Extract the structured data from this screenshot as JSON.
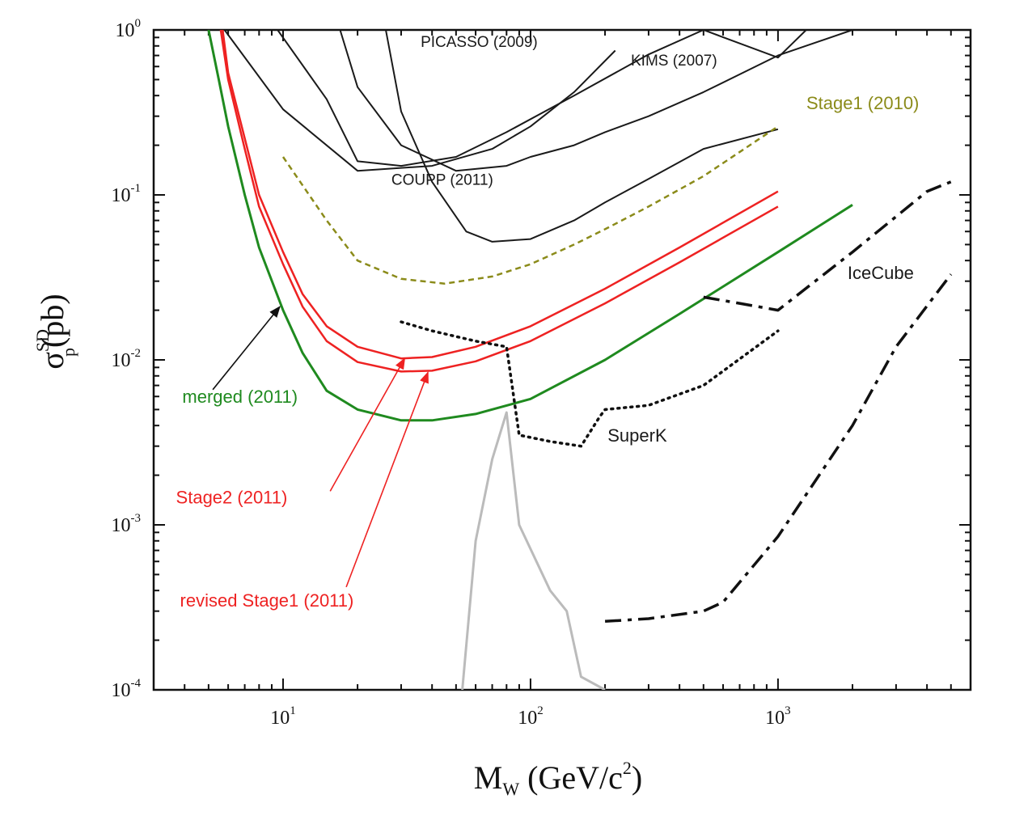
{
  "chart_data": {
    "type": "line",
    "title": "",
    "xscale": "log",
    "yscale": "log",
    "xlim": [
      3,
      6000
    ],
    "ylim": [
      0.0001,
      1
    ],
    "grid": false,
    "axis": {
      "xlabel_main": "M",
      "xlabel_sub": "W",
      "xlabel_rest": " (GeV/c",
      "xlabel_sup": "2",
      "xlabel_end": ")",
      "ylabel_main": "σ",
      "ylabel_sup": "SD",
      "ylabel_sub": "p",
      "ylabel_rest": "(pb)"
    },
    "x_ticks": [
      {
        "base": "10",
        "exp": "1",
        "value": 10
      },
      {
        "base": "10",
        "exp": "2",
        "value": 100
      },
      {
        "base": "10",
        "exp": "3",
        "value": 1000
      }
    ],
    "y_ticks": [
      {
        "base": "10",
        "exp": "0",
        "value": 1
      },
      {
        "base": "10",
        "exp": "-1",
        "value": 0.1
      },
      {
        "base": "10",
        "exp": "-2",
        "value": 0.01
      },
      {
        "base": "10",
        "exp": "-3",
        "value": 0.001
      },
      {
        "base": "10",
        "exp": "-4",
        "value": 0.0001
      }
    ],
    "series": [
      {
        "id": "picasso-2009",
        "color": "#1a1a1a",
        "dash": "solid",
        "width": 2,
        "x": [
          5.8,
          10,
          20,
          40,
          70,
          100,
          150,
          220
        ],
        "y": [
          1.0,
          0.33,
          0.14,
          0.15,
          0.19,
          0.26,
          0.42,
          0.75
        ]
      },
      {
        "id": "kims-2007",
        "color": "#1a1a1a",
        "dash": "solid",
        "width": 2,
        "x": [
          9.5,
          15,
          20,
          30,
          50,
          80,
          150,
          300,
          500,
          1000,
          1300
        ],
        "y": [
          1.0,
          0.38,
          0.16,
          0.15,
          0.17,
          0.24,
          0.4,
          0.71,
          1.0,
          0.68,
          1.0
        ]
      },
      {
        "id": "coupp-2011",
        "color": "#1a1a1a",
        "dash": "solid",
        "width": 2,
        "x": [
          17,
          20,
          30,
          50,
          80,
          100,
          150,
          200,
          300,
          500,
          1000,
          2000
        ],
        "y": [
          1.0,
          0.45,
          0.2,
          0.14,
          0.15,
          0.17,
          0.2,
          0.24,
          0.3,
          0.42,
          0.7,
          1.0
        ]
      },
      {
        "id": "coupp-2011-lower",
        "color": "#1a1a1a",
        "dash": "solid",
        "width": 2,
        "x": [
          26,
          30,
          40,
          55,
          70,
          100,
          150,
          200,
          300,
          500,
          1000
        ],
        "y": [
          1.0,
          0.32,
          0.12,
          0.06,
          0.052,
          0.054,
          0.07,
          0.09,
          0.125,
          0.19,
          0.25
        ]
      },
      {
        "id": "stage1-2010",
        "color": "#8b8b1a",
        "dash": "dashed",
        "width": 2.5,
        "x": [
          10,
          15,
          20,
          30,
          45,
          70,
          100,
          150,
          200,
          300,
          500,
          1000
        ],
        "y": [
          0.17,
          0.07,
          0.04,
          0.031,
          0.029,
          0.032,
          0.038,
          0.05,
          0.062,
          0.085,
          0.13,
          0.26
        ]
      },
      {
        "id": "stage2-2011",
        "color": "#ee2222",
        "dash": "solid",
        "width": 2.5,
        "x": [
          5.7,
          6,
          7,
          8,
          10,
          12,
          15,
          20,
          30,
          40,
          60,
          100,
          200,
          400,
          1000
        ],
        "y": [
          1.0,
          0.55,
          0.22,
          0.1,
          0.045,
          0.025,
          0.016,
          0.012,
          0.0102,
          0.0104,
          0.012,
          0.016,
          0.027,
          0.048,
          0.105
        ]
      },
      {
        "id": "revised-stage1-2011",
        "color": "#ee2222",
        "dash": "solid",
        "width": 2.5,
        "x": [
          5.6,
          6,
          7,
          8,
          10,
          12,
          15,
          20,
          30,
          40,
          60,
          100,
          200,
          400,
          1000
        ],
        "y": [
          1.0,
          0.5,
          0.19,
          0.085,
          0.038,
          0.021,
          0.013,
          0.0097,
          0.0085,
          0.0086,
          0.0098,
          0.013,
          0.022,
          0.039,
          0.085
        ]
      },
      {
        "id": "merged-2011",
        "color": "#1f8a1f",
        "dash": "solid",
        "width": 3,
        "x": [
          5,
          5.5,
          6,
          7,
          8,
          10,
          12,
          15,
          20,
          30,
          40,
          60,
          100,
          200,
          400,
          1000,
          2000
        ],
        "y": [
          1.0,
          0.5,
          0.26,
          0.1,
          0.048,
          0.02,
          0.011,
          0.0065,
          0.005,
          0.0043,
          0.0043,
          0.0047,
          0.0058,
          0.01,
          0.019,
          0.045,
          0.087
        ]
      },
      {
        "id": "icecube-upper",
        "color": "#111111",
        "dash": "dashdot",
        "width": 3.5,
        "x": [
          500,
          700,
          1000,
          2000,
          4000,
          5000
        ],
        "y": [
          0.024,
          0.022,
          0.02,
          0.045,
          0.105,
          0.12
        ]
      },
      {
        "id": "icecube-lower",
        "color": "#111111",
        "dash": "dashdot",
        "width": 3.5,
        "x": [
          200,
          300,
          500,
          600,
          1000,
          2000,
          3000,
          5000
        ],
        "y": [
          0.00026,
          0.00027,
          0.0003,
          0.00034,
          0.00085,
          0.004,
          0.012,
          0.033
        ]
      },
      {
        "id": "superk",
        "color": "#111111",
        "dash": "dotted",
        "width": 3.5,
        "x": [
          30,
          40,
          60,
          80,
          90,
          120,
          160,
          190,
          200,
          300,
          500,
          1000
        ],
        "y": [
          0.017,
          0.015,
          0.013,
          0.012,
          0.0035,
          0.0032,
          0.003,
          0.0045,
          0.005,
          0.0053,
          0.007,
          0.015
        ]
      },
      {
        "id": "model-distribution",
        "color": "#bbbbbb",
        "dash": "solid",
        "width": 3,
        "x": [
          53,
          60,
          70,
          80,
          90,
          120,
          140,
          160,
          200
        ],
        "y": [
          0.0001,
          0.0008,
          0.0025,
          0.0048,
          0.001,
          0.0004,
          0.0003,
          0.00012,
          0.0001
        ]
      }
    ],
    "annotations": [
      {
        "id": "label-picasso",
        "text": "PICASSO (2009)",
        "color": "#1a1a1a",
        "size": 19,
        "x": 62,
        "y": 0.79,
        "anchor": "middle"
      },
      {
        "id": "label-kims",
        "text": "KIMS (2007)",
        "color": "#1a1a1a",
        "size": 19,
        "x": 380,
        "y": 0.61,
        "anchor": "middle"
      },
      {
        "id": "label-coupp",
        "text": "COUPP (2011)",
        "color": "#1a1a1a",
        "size": 19,
        "x": 44,
        "y": 0.115,
        "anchor": "middle"
      },
      {
        "id": "label-stage1-2010",
        "text": "Stage1 (2010)",
        "color": "#8b8b1a",
        "size": 22,
        "x": 2200,
        "y": 0.33,
        "anchor": "middle"
      },
      {
        "id": "label-icecube",
        "text": "IceCube",
        "color": "#1a1a1a",
        "size": 22,
        "x": 2600,
        "y": 0.031,
        "anchor": "middle"
      },
      {
        "id": "label-superk",
        "text": "SuperK",
        "color": "#1a1a1a",
        "size": 22,
        "x": 270,
        "y": 0.0032,
        "anchor": "middle"
      },
      {
        "id": "label-merged",
        "text": "merged (2011)",
        "color": "#1f8a1f",
        "size": 22,
        "x": 6.7,
        "y": 0.0055,
        "anchor": "middle"
      },
      {
        "id": "label-stage2",
        "text": "Stage2 (2011)",
        "color": "#ee2222",
        "size": 22,
        "x": 6.2,
        "y": 0.00135,
        "anchor": "middle"
      },
      {
        "id": "label-revised-stage1",
        "text": "revised Stage1 (2011)",
        "color": "#ee2222",
        "size": 22,
        "x": 8.6,
        "y": 0.00032,
        "anchor": "middle"
      }
    ],
    "arrows": [
      {
        "id": "arrow-merged",
        "color": "#111111",
        "from": [
          5.2,
          0.0066
        ],
        "to": [
          9.7,
          0.021
        ]
      },
      {
        "id": "arrow-stage2",
        "color": "#ee2222",
        "from": [
          15.5,
          0.0016
        ],
        "to": [
          31,
          0.0102
        ]
      },
      {
        "id": "arrow-revised-stage1",
        "color": "#ee2222",
        "from": [
          18,
          0.00042
        ],
        "to": [
          38.5,
          0.0084
        ]
      }
    ]
  }
}
